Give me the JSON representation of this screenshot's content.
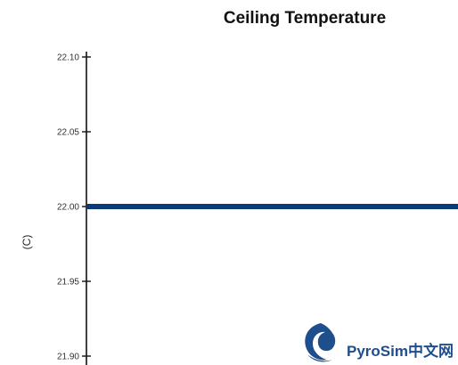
{
  "chart_data": {
    "type": "line",
    "title": "Ceiling Temperature",
    "xlabel": "",
    "ylabel": "(C)",
    "ylim": [
      21.895,
      22.102
    ],
    "yticks": [
      "22.10",
      "22.05",
      "22.00",
      "21.95",
      "21.90"
    ],
    "y_tick_values": [
      22.1,
      22.05,
      22.0,
      21.95,
      21.9
    ],
    "series": [
      {
        "color": "#0a3a78",
        "values": [
          22.0,
          22.0
        ]
      }
    ],
    "grid": false
  },
  "watermark": {
    "text": "PyroSim中文网",
    "logo_icon": "flame-swirl-logo",
    "color": "#1f4e8c"
  }
}
